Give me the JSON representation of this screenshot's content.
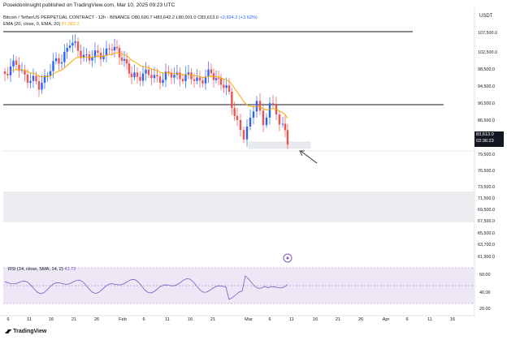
{
  "header": {
    "text": "PoseidonInsight published on TradingView.com, Mar 10, 2025 09:23 UTC"
  },
  "legend": {
    "symbol": "Bitcoin / TetherUS PERPETUAL CONTRACT · 12h · BINANCE",
    "open": "O80,690.7",
    "high": "H83,642.2",
    "low": "L80,001.0",
    "close": "C83,613.0",
    "change": "+2,924.2 (+3.62%)",
    "ema_label": "EMA (20, close, 0, EMA, 20)",
    "ema_value": "87,082.2"
  },
  "currency": "USDT",
  "price_axis": [
    "107,500.0",
    "102,500.0",
    "98,500.0",
    "94,500.0",
    "90,500.0",
    "86,500.0",
    "79,500.0",
    "76,500.0",
    "73,500.0",
    "71,500.0",
    "69,500.0",
    "67,500.0",
    "65,500.0",
    "63,700.0",
    "61,900.0"
  ],
  "current_price": {
    "value": "83,613.0",
    "countdown": "02:36:23"
  },
  "rsi": {
    "label": "RSI (14, close, SMA, 14, 2)",
    "value": "41.72",
    "ticks": [
      "60.00",
      "40.00",
      "20.00"
    ]
  },
  "time_axis": [
    "6",
    "11",
    "16",
    "21",
    "26",
    "Feb",
    "6",
    "11",
    "16",
    "21",
    "Mar",
    "6",
    "11",
    "16",
    "21",
    "26",
    "Apr",
    "6",
    "11",
    "16"
  ],
  "footer": {
    "brand": "TradingView"
  },
  "colors": {
    "up": "#2962ff",
    "down": "#ef5350",
    "ema": "#f7a600",
    "rsi": "#7e57c2",
    "zone": "#ececf0"
  }
}
